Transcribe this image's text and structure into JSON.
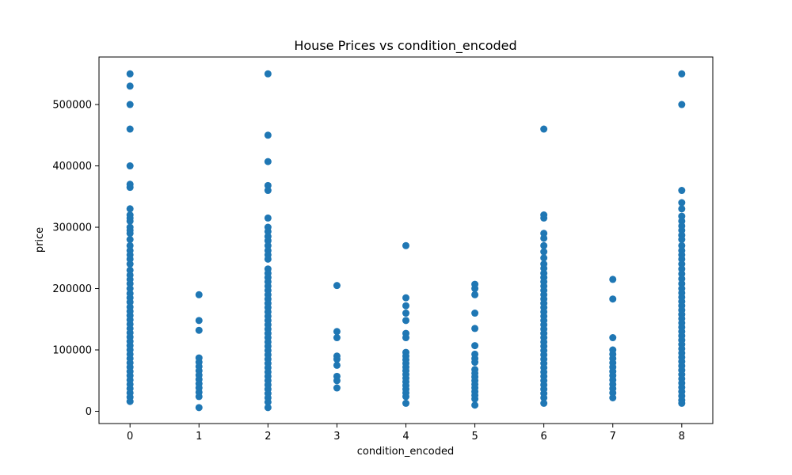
{
  "chart_data": {
    "type": "scatter",
    "title": "House Prices vs condition_encoded",
    "xlabel": "condition_encoded",
    "ylabel": "price",
    "xlim": [
      -0.45,
      8.45
    ],
    "ylim": [
      -20000,
      577500
    ],
    "xticks": [
      0,
      1,
      2,
      3,
      4,
      5,
      6,
      7,
      8
    ],
    "xtick_labels": [
      "0",
      "1",
      "2",
      "3",
      "4",
      "5",
      "6",
      "7",
      "8"
    ],
    "yticks": [
      0,
      100000,
      200000,
      300000,
      400000,
      500000
    ],
    "ytick_labels": [
      "0",
      "100000",
      "200000",
      "300000",
      "400000",
      "500000"
    ],
    "grid": false,
    "marker_color": "#1f77b4",
    "points": [
      {
        "x": 0,
        "y": 550000
      },
      {
        "x": 0,
        "y": 530000
      },
      {
        "x": 0,
        "y": 500000
      },
      {
        "x": 0,
        "y": 460000
      },
      {
        "x": 0,
        "y": 400000
      },
      {
        "x": 0,
        "y": 370000
      },
      {
        "x": 0,
        "y": 365000
      },
      {
        "x": 0,
        "y": 330000
      },
      {
        "x": 0,
        "y": 320000
      },
      {
        "x": 0,
        "y": 315000
      },
      {
        "x": 0,
        "y": 310000
      },
      {
        "x": 0,
        "y": 300000
      },
      {
        "x": 0,
        "y": 295000
      },
      {
        "x": 0,
        "y": 290000
      },
      {
        "x": 0,
        "y": 280000
      },
      {
        "x": 0,
        "y": 270000
      },
      {
        "x": 0,
        "y": 262000
      },
      {
        "x": 0,
        "y": 255000
      },
      {
        "x": 0,
        "y": 248000
      },
      {
        "x": 0,
        "y": 240000
      },
      {
        "x": 0,
        "y": 230000
      },
      {
        "x": 0,
        "y": 222000
      },
      {
        "x": 0,
        "y": 215000
      },
      {
        "x": 0,
        "y": 208000
      },
      {
        "x": 0,
        "y": 200000
      },
      {
        "x": 0,
        "y": 192000
      },
      {
        "x": 0,
        "y": 185000
      },
      {
        "x": 0,
        "y": 178000
      },
      {
        "x": 0,
        "y": 170000
      },
      {
        "x": 0,
        "y": 163000
      },
      {
        "x": 0,
        "y": 156000
      },
      {
        "x": 0,
        "y": 149000
      },
      {
        "x": 0,
        "y": 142000
      },
      {
        "x": 0,
        "y": 135000
      },
      {
        "x": 0,
        "y": 128000
      },
      {
        "x": 0,
        "y": 121000
      },
      {
        "x": 0,
        "y": 114000
      },
      {
        "x": 0,
        "y": 107000
      },
      {
        "x": 0,
        "y": 100000
      },
      {
        "x": 0,
        "y": 93000
      },
      {
        "x": 0,
        "y": 86000
      },
      {
        "x": 0,
        "y": 79000
      },
      {
        "x": 0,
        "y": 72000
      },
      {
        "x": 0,
        "y": 65000
      },
      {
        "x": 0,
        "y": 58000
      },
      {
        "x": 0,
        "y": 51000
      },
      {
        "x": 0,
        "y": 44000
      },
      {
        "x": 0,
        "y": 37000
      },
      {
        "x": 0,
        "y": 30000
      },
      {
        "x": 0,
        "y": 23000
      },
      {
        "x": 0,
        "y": 16000
      },
      {
        "x": 1,
        "y": 190000
      },
      {
        "x": 1,
        "y": 148000
      },
      {
        "x": 1,
        "y": 132000
      },
      {
        "x": 1,
        "y": 87000
      },
      {
        "x": 1,
        "y": 80000
      },
      {
        "x": 1,
        "y": 73000
      },
      {
        "x": 1,
        "y": 66000
      },
      {
        "x": 1,
        "y": 59000
      },
      {
        "x": 1,
        "y": 52000
      },
      {
        "x": 1,
        "y": 45000
      },
      {
        "x": 1,
        "y": 38000
      },
      {
        "x": 1,
        "y": 31000
      },
      {
        "x": 1,
        "y": 24000
      },
      {
        "x": 1,
        "y": 6000
      },
      {
        "x": 2,
        "y": 550000
      },
      {
        "x": 2,
        "y": 450000
      },
      {
        "x": 2,
        "y": 407000
      },
      {
        "x": 2,
        "y": 368000
      },
      {
        "x": 2,
        "y": 360000
      },
      {
        "x": 2,
        "y": 315000
      },
      {
        "x": 2,
        "y": 300000
      },
      {
        "x": 2,
        "y": 293000
      },
      {
        "x": 2,
        "y": 285000
      },
      {
        "x": 2,
        "y": 278000
      },
      {
        "x": 2,
        "y": 270000
      },
      {
        "x": 2,
        "y": 262000
      },
      {
        "x": 2,
        "y": 255000
      },
      {
        "x": 2,
        "y": 248000
      },
      {
        "x": 2,
        "y": 232000
      },
      {
        "x": 2,
        "y": 225000
      },
      {
        "x": 2,
        "y": 218000
      },
      {
        "x": 2,
        "y": 211000
      },
      {
        "x": 2,
        "y": 204000
      },
      {
        "x": 2,
        "y": 197000
      },
      {
        "x": 2,
        "y": 190000
      },
      {
        "x": 2,
        "y": 183000
      },
      {
        "x": 2,
        "y": 176000
      },
      {
        "x": 2,
        "y": 169000
      },
      {
        "x": 2,
        "y": 162000
      },
      {
        "x": 2,
        "y": 155000
      },
      {
        "x": 2,
        "y": 148000
      },
      {
        "x": 2,
        "y": 141000
      },
      {
        "x": 2,
        "y": 134000
      },
      {
        "x": 2,
        "y": 127000
      },
      {
        "x": 2,
        "y": 120000
      },
      {
        "x": 2,
        "y": 113000
      },
      {
        "x": 2,
        "y": 106000
      },
      {
        "x": 2,
        "y": 99000
      },
      {
        "x": 2,
        "y": 92000
      },
      {
        "x": 2,
        "y": 85000
      },
      {
        "x": 2,
        "y": 78000
      },
      {
        "x": 2,
        "y": 71000
      },
      {
        "x": 2,
        "y": 64000
      },
      {
        "x": 2,
        "y": 57000
      },
      {
        "x": 2,
        "y": 50000
      },
      {
        "x": 2,
        "y": 43000
      },
      {
        "x": 2,
        "y": 36000
      },
      {
        "x": 2,
        "y": 29000
      },
      {
        "x": 2,
        "y": 22000
      },
      {
        "x": 2,
        "y": 15000
      },
      {
        "x": 2,
        "y": 6000
      },
      {
        "x": 3,
        "y": 205000
      },
      {
        "x": 3,
        "y": 130000
      },
      {
        "x": 3,
        "y": 120000
      },
      {
        "x": 3,
        "y": 90000
      },
      {
        "x": 3,
        "y": 85000
      },
      {
        "x": 3,
        "y": 75000
      },
      {
        "x": 3,
        "y": 57000
      },
      {
        "x": 3,
        "y": 50000
      },
      {
        "x": 3,
        "y": 38000
      },
      {
        "x": 4,
        "y": 270000
      },
      {
        "x": 4,
        "y": 185000
      },
      {
        "x": 4,
        "y": 172000
      },
      {
        "x": 4,
        "y": 160000
      },
      {
        "x": 4,
        "y": 148000
      },
      {
        "x": 4,
        "y": 127000
      },
      {
        "x": 4,
        "y": 120000
      },
      {
        "x": 4,
        "y": 96000
      },
      {
        "x": 4,
        "y": 90000
      },
      {
        "x": 4,
        "y": 84000
      },
      {
        "x": 4,
        "y": 78000
      },
      {
        "x": 4,
        "y": 72000
      },
      {
        "x": 4,
        "y": 66000
      },
      {
        "x": 4,
        "y": 60000
      },
      {
        "x": 4,
        "y": 54000
      },
      {
        "x": 4,
        "y": 48000
      },
      {
        "x": 4,
        "y": 42000
      },
      {
        "x": 4,
        "y": 36000
      },
      {
        "x": 4,
        "y": 30000
      },
      {
        "x": 4,
        "y": 24000
      },
      {
        "x": 4,
        "y": 13000
      },
      {
        "x": 5,
        "y": 207000
      },
      {
        "x": 5,
        "y": 200000
      },
      {
        "x": 5,
        "y": 190000
      },
      {
        "x": 5,
        "y": 160000
      },
      {
        "x": 5,
        "y": 135000
      },
      {
        "x": 5,
        "y": 107000
      },
      {
        "x": 5,
        "y": 93000
      },
      {
        "x": 5,
        "y": 86000
      },
      {
        "x": 5,
        "y": 80000
      },
      {
        "x": 5,
        "y": 68000
      },
      {
        "x": 5,
        "y": 62000
      },
      {
        "x": 5,
        "y": 56000
      },
      {
        "x": 5,
        "y": 50000
      },
      {
        "x": 5,
        "y": 44000
      },
      {
        "x": 5,
        "y": 38000
      },
      {
        "x": 5,
        "y": 32000
      },
      {
        "x": 5,
        "y": 26000
      },
      {
        "x": 5,
        "y": 20000
      },
      {
        "x": 5,
        "y": 10000
      },
      {
        "x": 6,
        "y": 460000
      },
      {
        "x": 6,
        "y": 320000
      },
      {
        "x": 6,
        "y": 315000
      },
      {
        "x": 6,
        "y": 290000
      },
      {
        "x": 6,
        "y": 282000
      },
      {
        "x": 6,
        "y": 270000
      },
      {
        "x": 6,
        "y": 260000
      },
      {
        "x": 6,
        "y": 250000
      },
      {
        "x": 6,
        "y": 240000
      },
      {
        "x": 6,
        "y": 233000
      },
      {
        "x": 6,
        "y": 225000
      },
      {
        "x": 6,
        "y": 218000
      },
      {
        "x": 6,
        "y": 211000
      },
      {
        "x": 6,
        "y": 204000
      },
      {
        "x": 6,
        "y": 197000
      },
      {
        "x": 6,
        "y": 190000
      },
      {
        "x": 6,
        "y": 183000
      },
      {
        "x": 6,
        "y": 176000
      },
      {
        "x": 6,
        "y": 169000
      },
      {
        "x": 6,
        "y": 162000
      },
      {
        "x": 6,
        "y": 155000
      },
      {
        "x": 6,
        "y": 148000
      },
      {
        "x": 6,
        "y": 141000
      },
      {
        "x": 6,
        "y": 134000
      },
      {
        "x": 6,
        "y": 127000
      },
      {
        "x": 6,
        "y": 120000
      },
      {
        "x": 6,
        "y": 113000
      },
      {
        "x": 6,
        "y": 106000
      },
      {
        "x": 6,
        "y": 99000
      },
      {
        "x": 6,
        "y": 92000
      },
      {
        "x": 6,
        "y": 85000
      },
      {
        "x": 6,
        "y": 78000
      },
      {
        "x": 6,
        "y": 71000
      },
      {
        "x": 6,
        "y": 64000
      },
      {
        "x": 6,
        "y": 57000
      },
      {
        "x": 6,
        "y": 50000
      },
      {
        "x": 6,
        "y": 43000
      },
      {
        "x": 6,
        "y": 36000
      },
      {
        "x": 6,
        "y": 29000
      },
      {
        "x": 6,
        "y": 22000
      },
      {
        "x": 6,
        "y": 13000
      },
      {
        "x": 7,
        "y": 215000
      },
      {
        "x": 7,
        "y": 183000
      },
      {
        "x": 7,
        "y": 120000
      },
      {
        "x": 7,
        "y": 100000
      },
      {
        "x": 7,
        "y": 93000
      },
      {
        "x": 7,
        "y": 86000
      },
      {
        "x": 7,
        "y": 79000
      },
      {
        "x": 7,
        "y": 72000
      },
      {
        "x": 7,
        "y": 65000
      },
      {
        "x": 7,
        "y": 58000
      },
      {
        "x": 7,
        "y": 51000
      },
      {
        "x": 7,
        "y": 44000
      },
      {
        "x": 7,
        "y": 37000
      },
      {
        "x": 7,
        "y": 30000
      },
      {
        "x": 7,
        "y": 22000
      },
      {
        "x": 8,
        "y": 550000
      },
      {
        "x": 8,
        "y": 500000
      },
      {
        "x": 8,
        "y": 360000
      },
      {
        "x": 8,
        "y": 340000
      },
      {
        "x": 8,
        "y": 330000
      },
      {
        "x": 8,
        "y": 318000
      },
      {
        "x": 8,
        "y": 310000
      },
      {
        "x": 8,
        "y": 302000
      },
      {
        "x": 8,
        "y": 295000
      },
      {
        "x": 8,
        "y": 287000
      },
      {
        "x": 8,
        "y": 280000
      },
      {
        "x": 8,
        "y": 270000
      },
      {
        "x": 8,
        "y": 262000
      },
      {
        "x": 8,
        "y": 255000
      },
      {
        "x": 8,
        "y": 248000
      },
      {
        "x": 8,
        "y": 240000
      },
      {
        "x": 8,
        "y": 232000
      },
      {
        "x": 8,
        "y": 224000
      },
      {
        "x": 8,
        "y": 216000
      },
      {
        "x": 8,
        "y": 208000
      },
      {
        "x": 8,
        "y": 200000
      },
      {
        "x": 8,
        "y": 193000
      },
      {
        "x": 8,
        "y": 186000
      },
      {
        "x": 8,
        "y": 179000
      },
      {
        "x": 8,
        "y": 172000
      },
      {
        "x": 8,
        "y": 165000
      },
      {
        "x": 8,
        "y": 158000
      },
      {
        "x": 8,
        "y": 151000
      },
      {
        "x": 8,
        "y": 144000
      },
      {
        "x": 8,
        "y": 137000
      },
      {
        "x": 8,
        "y": 130000
      },
      {
        "x": 8,
        "y": 123000
      },
      {
        "x": 8,
        "y": 116000
      },
      {
        "x": 8,
        "y": 109000
      },
      {
        "x": 8,
        "y": 102000
      },
      {
        "x": 8,
        "y": 95000
      },
      {
        "x": 8,
        "y": 88000
      },
      {
        "x": 8,
        "y": 81000
      },
      {
        "x": 8,
        "y": 74000
      },
      {
        "x": 8,
        "y": 67000
      },
      {
        "x": 8,
        "y": 60000
      },
      {
        "x": 8,
        "y": 53000
      },
      {
        "x": 8,
        "y": 46000
      },
      {
        "x": 8,
        "y": 39000
      },
      {
        "x": 8,
        "y": 32000
      },
      {
        "x": 8,
        "y": 25000
      },
      {
        "x": 8,
        "y": 18000
      },
      {
        "x": 8,
        "y": 13000
      }
    ]
  }
}
